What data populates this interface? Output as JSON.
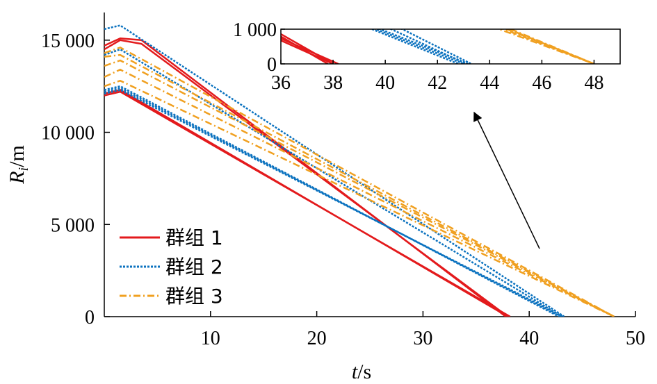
{
  "chart_data": {
    "type": "line",
    "xlabel_var": "t",
    "xlabel_unit": "/s",
    "ylabel_var": "R",
    "ylabel_sub": "i",
    "ylabel_unit": "/m",
    "xlim": [
      0,
      50
    ],
    "ylim": [
      0,
      16500
    ],
    "xticks": [
      10,
      20,
      30,
      40,
      50
    ],
    "xtick_labels": [
      "10",
      "20",
      "30",
      "40",
      "50"
    ],
    "yticks": [
      0,
      5000,
      10000,
      15000
    ],
    "ytick_labels": [
      "0",
      "5 000",
      "10 000",
      "15 000"
    ],
    "legend_position": "bottom-left",
    "series": [
      {
        "name": "群组 1",
        "group": 1,
        "color": "#e31a1c",
        "style": "solid",
        "x": [
          0,
          1.5,
          38.2
        ],
        "y": [
          12000,
          12200,
          0
        ]
      },
      {
        "name": "",
        "group": 1,
        "color": "#e31a1c",
        "style": "solid",
        "x": [
          0,
          1.5,
          38.0
        ],
        "y": [
          12100,
          12300,
          0
        ]
      },
      {
        "name": "",
        "group": 1,
        "color": "#e31a1c",
        "style": "solid",
        "x": [
          0,
          1.5,
          3.5,
          38.0
        ],
        "y": [
          14500,
          15000,
          14800,
          0
        ]
      },
      {
        "name": "",
        "group": 1,
        "color": "#e31a1c",
        "style": "solid",
        "x": [
          0,
          1.5,
          3.5,
          37.8
        ],
        "y": [
          14700,
          15100,
          15000,
          0
        ]
      },
      {
        "name": "群组 2",
        "group": 2,
        "color": "#0b72bf",
        "style": "dotted",
        "x": [
          0,
          1.5,
          43.2
        ],
        "y": [
          12100,
          12300,
          0
        ]
      },
      {
        "name": "",
        "group": 2,
        "color": "#0b72bf",
        "style": "dotted",
        "x": [
          0,
          1.5,
          43.0
        ],
        "y": [
          12200,
          12400,
          0
        ]
      },
      {
        "name": "",
        "group": 2,
        "color": "#0b72bf",
        "style": "dotted",
        "x": [
          0,
          1.5,
          42.8
        ],
        "y": [
          12300,
          12500,
          0
        ]
      },
      {
        "name": "",
        "group": 2,
        "color": "#0b72bf",
        "style": "dotted",
        "x": [
          0,
          1.5,
          43.1
        ],
        "y": [
          14200,
          14500,
          0
        ]
      },
      {
        "name": "",
        "group": 2,
        "color": "#0b72bf",
        "style": "dotted",
        "x": [
          0,
          1.5,
          43.3
        ],
        "y": [
          15600,
          15800,
          0
        ]
      },
      {
        "name": "群组 3",
        "group": 3,
        "color": "#f0a020",
        "style": "dashdot",
        "x": [
          0,
          1.5,
          48.0
        ],
        "y": [
          12500,
          12800,
          0
        ]
      },
      {
        "name": "",
        "group": 3,
        "color": "#f0a020",
        "style": "dashdot",
        "x": [
          0,
          1.5,
          48.0
        ],
        "y": [
          13000,
          13400,
          0
        ]
      },
      {
        "name": "",
        "group": 3,
        "color": "#f0a020",
        "style": "dashdot",
        "x": [
          0,
          1.5,
          48.0
        ],
        "y": [
          13600,
          13900,
          0
        ]
      },
      {
        "name": "",
        "group": 3,
        "color": "#f0a020",
        "style": "dashdot",
        "x": [
          0,
          1.5,
          48.0
        ],
        "y": [
          14300,
          14600,
          0
        ]
      },
      {
        "name": "",
        "group": 3,
        "color": "#f0a020",
        "style": "dashdot",
        "x": [
          0,
          1.5,
          48.0
        ],
        "y": [
          14100,
          14200,
          0
        ]
      }
    ],
    "inset": {
      "xlim": [
        36,
        49
      ],
      "ylim": [
        0,
        1000
      ],
      "xticks": [
        36,
        38,
        40,
        42,
        44,
        46,
        48
      ],
      "xtick_labels": [
        "36",
        "38",
        "40",
        "42",
        "44",
        "46",
        "48"
      ],
      "yticks": [
        0,
        1000
      ],
      "ytick_labels": [
        "0",
        "1 000"
      ]
    }
  }
}
